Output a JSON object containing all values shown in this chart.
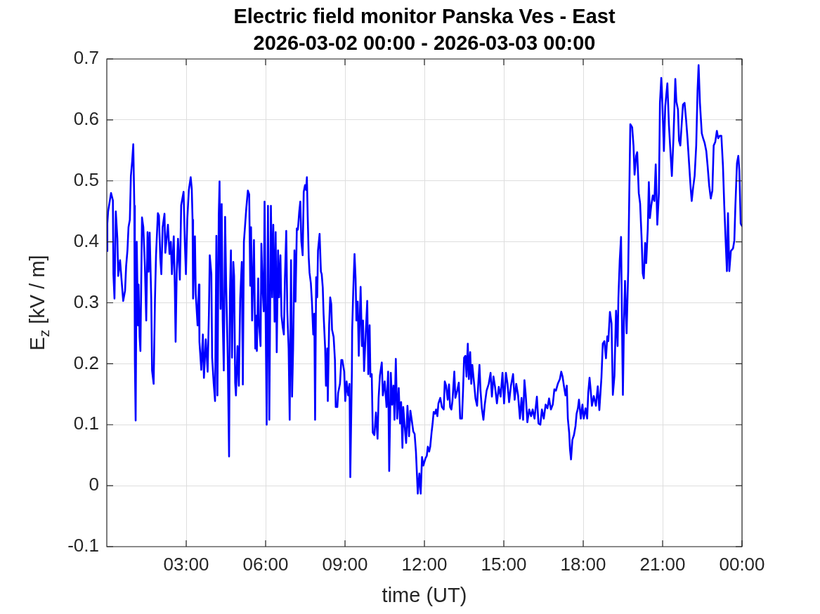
{
  "chart_data": {
    "type": "line",
    "title": "Electric field monitor Panska Ves - East",
    "subtitle": "2026-03-02 00:00 - 2026-03-03 00:00",
    "xlabel": "time (UT)",
    "ylabel": "E$_{z}$ [kV / m]",
    "x": [
      0,
      0.02,
      0.05,
      0.16,
      0.23,
      0.25,
      0.29,
      0.34,
      0.4,
      0.43,
      0.5,
      0.56,
      0.62,
      0.69,
      0.73,
      0.78,
      0.82,
      0.87,
      0.91,
      0.96,
      1,
      1.04,
      1.06,
      1.09,
      1.13,
      1.18,
      1.2,
      1.24,
      1.27,
      1.33,
      1.38,
      1.44,
      1.49,
      1.54,
      1.58,
      1.62,
      1.68,
      1.71,
      1.77,
      1.82,
      1.86,
      1.93,
      1.97,
      2.02,
      2.06,
      2.11,
      2.18,
      2.21,
      2.31,
      2.37,
      2.42,
      2.46,
      2.53,
      2.57,
      2.6,
      2.64,
      2.69,
      2.76,
      2.81,
      2.9,
      2.95,
      2.99,
      3.04,
      3.1,
      3.17,
      3.21,
      3.24,
      3.26,
      3.33,
      3.36,
      3.43,
      3.48,
      3.5,
      3.57,
      3.63,
      3.67,
      3.74,
      3.81,
      3.86,
      3.89,
      3.95,
      3.98,
      4.04,
      4.09,
      4.14,
      4.18,
      4.23,
      4.26,
      4.3,
      4.34,
      4.38,
      4.42,
      4.47,
      4.51,
      4.57,
      4.62,
      4.65,
      4.69,
      4.73,
      4.78,
      4.81,
      4.85,
      4.88,
      4.94,
      4.99,
      5.04,
      5.1,
      5.14,
      5.18,
      5.22,
      5.27,
      5.33,
      5.38,
      5.42,
      5.45,
      5.49,
      5.56,
      5.61,
      5.65,
      5.67,
      5.72,
      5.75,
      5.81,
      5.84,
      5.89,
      5.93,
      5.96,
      6.04,
      6.09,
      6.14,
      6.2,
      6.25,
      6.29,
      6.34,
      6.38,
      6.42,
      6.47,
      6.51,
      6.56,
      6.6,
      6.65,
      6.69,
      6.73,
      6.78,
      6.82,
      6.87,
      6.91,
      6.96,
      7,
      7.04,
      7.09,
      7.13,
      7.18,
      7.22,
      7.27,
      7.31,
      7.35,
      7.4,
      7.44,
      7.49,
      7.53,
      7.56,
      7.59,
      7.63,
      7.66,
      7.71,
      7.75,
      7.8,
      7.84,
      7.87,
      7.91,
      7.95,
      7.98,
      8.04,
      8.09,
      8.12,
      8.16,
      8.19,
      8.25,
      8.28,
      8.33,
      8.35,
      8.4,
      8.44,
      8.48,
      8.51,
      8.57,
      8.62,
      8.65,
      8.71,
      8.74,
      8.81,
      8.86,
      8.9,
      8.97,
      9.01,
      9.06,
      9.12,
      9.17,
      9.2,
      9.26,
      9.27,
      9.31,
      9.36,
      9.4,
      9.43,
      9.48,
      9.52,
      9.59,
      9.64,
      9.68,
      9.72,
      9.79,
      9.84,
      9.88,
      9.93,
      9.96,
      10.01,
      10.05,
      10.11,
      10.17,
      10.23,
      10.27,
      10.32,
      10.39,
      10.43,
      10.5,
      10.57,
      10.63,
      10.67,
      10.73,
      10.78,
      10.83,
      10.87,
      10.92,
      10.97,
      11.03,
      11.08,
      11.12,
      11.17,
      11.2,
      11.26,
      11.31,
      11.36,
      11.42,
      11.47,
      11.52,
      11.58,
      11.63,
      11.68,
      11.75,
      11.81,
      11.86,
      11.91,
      11.96,
      12.04,
      12.09,
      12.13,
      12.18,
      12.22,
      12.27,
      12.31,
      12.35,
      12.4,
      12.44,
      12.49,
      12.53,
      12.6,
      12.66,
      12.73,
      12.77,
      12.82,
      12.88,
      12.93,
      12.97,
      13.02,
      13.06,
      13.13,
      13.17,
      13.24,
      13.3,
      13.35,
      13.42,
      13.46,
      13.5,
      13.55,
      13.59,
      13.64,
      13.68,
      13.73,
      13.77,
      13.81,
      13.88,
      13.93,
      13.99,
      14.04,
      14.08,
      14.12,
      14.17,
      14.23,
      14.28,
      14.35,
      14.43,
      14.5,
      14.55,
      14.61,
      14.67,
      14.74,
      14.81,
      14.88,
      14.95,
      15.01,
      15.08,
      15.14,
      15.2,
      15.27,
      15.35,
      15.41,
      15.47,
      15.54,
      15.61,
      15.67,
      15.73,
      15.78,
      15.83,
      15.89,
      15.96,
      16.03,
      16.09,
      16.16,
      16.25,
      16.31,
      16.38,
      16.44,
      16.51,
      16.58,
      16.65,
      16.71,
      16.78,
      16.85,
      16.91,
      16.97,
      17.04,
      17.12,
      17.17,
      17.22,
      17.27,
      17.33,
      17.38,
      17.42,
      17.47,
      17.5,
      17.54,
      17.59,
      17.65,
      17.71,
      17.75,
      17.8,
      17.84,
      17.91,
      17.97,
      18.02,
      18.09,
      18.15,
      18.19,
      18.24,
      18.27,
      18.33,
      18.4,
      18.48,
      18.55,
      18.61,
      18.69,
      18.74,
      18.8,
      18.86,
      18.91,
      18.95,
      19.01,
      19.07,
      19.12,
      19.18,
      19.24,
      19.3,
      19.33,
      19.38,
      19.43,
      19.47,
      19.5,
      19.54,
      19.58,
      19.64,
      19.7,
      19.74,
      19.78,
      19.85,
      19.9,
      19.94,
      20,
      20.04,
      20.1,
      20.15,
      20.21,
      20.25,
      20.29,
      20.34,
      20.38,
      20.44,
      20.48,
      20.52,
      20.57,
      20.63,
      20.69,
      20.74,
      20.8,
      20.86,
      20.9,
      20.95,
      20.99,
      21.05,
      21.1,
      21.18,
      21.24,
      21.3,
      21.35,
      21.41,
      21.48,
      21.52,
      21.58,
      21.62,
      21.67,
      21.71,
      21.77,
      21.83,
      21.89,
      21.94,
      22,
      22.06,
      22.1,
      22.15,
      22.21,
      22.27,
      22.32,
      22.36,
      22.41,
      22.48,
      22.53,
      22.59,
      22.65,
      22.7,
      22.76,
      22.82,
      22.88,
      22.93,
      22.99,
      23.05,
      23.1,
      23.16,
      23.22,
      23.28,
      23.33,
      23.39,
      23.43,
      23.47,
      23.52,
      23.58,
      23.66,
      23.71,
      23.75,
      23.81,
      23.86,
      23.9,
      23.95,
      24
    ],
    "series": [
      {
        "color": "#0000ff",
        "values": [
          0.385,
          0.43,
          0.45,
          0.48,
          0.468,
          0.347,
          0.307,
          0.45,
          0.405,
          0.344,
          0.37,
          0.336,
          0.303,
          0.32,
          0.36,
          0.386,
          0.424,
          0.436,
          0.508,
          0.533,
          0.56,
          0.459,
          0.206,
          0.107,
          0.4,
          0.263,
          0.33,
          0.244,
          0.221,
          0.44,
          0.424,
          0.359,
          0.271,
          0.416,
          0.351,
          0.415,
          0.305,
          0.189,
          0.167,
          0.305,
          0.378,
          0.447,
          0.443,
          0.374,
          0.347,
          0.424,
          0.446,
          0.382,
          0.428,
          0.38,
          0.4,
          0.347,
          0.409,
          0.325,
          0.236,
          0.347,
          0.405,
          0.338,
          0.46,
          0.482,
          0.397,
          0.347,
          0.436,
          0.485,
          0.506,
          0.487,
          0.436,
          0.307,
          0.409,
          0.315,
          0.263,
          0.33,
          0.236,
          0.19,
          0.248,
          0.177,
          0.24,
          0.187,
          0.286,
          0.378,
          0.347,
          0.21,
          0.167,
          0.139,
          0.41,
          0.148,
          0.443,
          0.499,
          0.29,
          0.462,
          0.271,
          0.189,
          0.441,
          0.328,
          0.21,
          0.048,
          0.309,
          0.386,
          0.21,
          0.367,
          0.344,
          0.169,
          0.148,
          0.229,
          0.164,
          0.307,
          0.367,
          0.166,
          0.4,
          0.424,
          0.455,
          0.484,
          0.478,
          0.328,
          0.424,
          0.271,
          0.403,
          0.225,
          0.279,
          0.221,
          0.34,
          0.267,
          0.229,
          0.397,
          0.32,
          0.286,
          0.466,
          0.1,
          0.459,
          0.108,
          0.459,
          0.309,
          0.428,
          0.269,
          0.416,
          0.219,
          0.386,
          0.309,
          0.378,
          0.279,
          0.259,
          0.248,
          0.34,
          0.418,
          0.286,
          0.225,
          0.108,
          0.37,
          0.146,
          0.225,
          0.386,
          0.302,
          0.422,
          0.42,
          0.449,
          0.466,
          0.401,
          0.378,
          0.482,
          0.493,
          0.485,
          0.506,
          0.443,
          0.374,
          0.349,
          0.332,
          0.302,
          0.248,
          0.282,
          0.108,
          0.342,
          0.309,
          0.386,
          0.413,
          0.351,
          0.347,
          0.325,
          0.282,
          0.225,
          0.164,
          0.225,
          0.139,
          0.263,
          0.309,
          0.298,
          0.256,
          0.244,
          0.206,
          0.129,
          0.129,
          0.152,
          0.167,
          0.206,
          0.206,
          0.187,
          0.139,
          0.171,
          0.148,
          0.167,
          0.014,
          0.187,
          0.254,
          0.317,
          0.38,
          0.34,
          0.271,
          0.302,
          0.213,
          0.326,
          0.229,
          0.271,
          0.188,
          0.256,
          0.303,
          0.183,
          0.263,
          0.179,
          0.183,
          0.087,
          0.083,
          0.12,
          0.077,
          0.144,
          0.181,
          0.202,
          0.148,
          0.171,
          0.129,
          0.187,
          0.024,
          0.185,
          0.133,
          0.164,
          0.108,
          0.208,
          0.11,
          0.16,
          0.102,
          0.137,
          0.062,
          0.129,
          0.095,
          0.07,
          0.131,
          0.081,
          0.123,
          0.108,
          0.089,
          0.085,
          0.056,
          -0.013,
          0.02,
          -0.013,
          0.047,
          0.033,
          0.045,
          0.049,
          0.064,
          0.056,
          0.064,
          0.087,
          0.102,
          0.121,
          0.118,
          0.125,
          0.114,
          0.135,
          0.144,
          0.129,
          0.125,
          0.171,
          0.164,
          0.141,
          0.166,
          0.129,
          0.125,
          0.139,
          0.187,
          0.144,
          0.156,
          0.169,
          0.11,
          0.11,
          0.156,
          0.21,
          0.213,
          0.179,
          0.233,
          0.175,
          0.219,
          0.167,
          0.198,
          0.167,
          0.143,
          0.131,
          0.171,
          0.198,
          0.156,
          0.127,
          0.108,
          0.133,
          0.156,
          0.167,
          0.185,
          0.146,
          0.179,
          0.162,
          0.135,
          0.162,
          0.146,
          0.185,
          0.135,
          0.185,
          0.167,
          0.137,
          0.164,
          0.183,
          0.141,
          0.167,
          0.148,
          0.11,
          0.144,
          0.108,
          0.173,
          0.148,
          0.104,
          0.125,
          0.114,
          0.125,
          0.11,
          0.146,
          0.102,
          0.1,
          0.125,
          0.11,
          0.133,
          0.127,
          0.143,
          0.125,
          0.133,
          0.158,
          0.156,
          0.167,
          0.175,
          0.187,
          0.179,
          0.164,
          0.148,
          0.164,
          0.11,
          0.087,
          0.06,
          0.043,
          0.075,
          0.083,
          0.098,
          0.118,
          0.127,
          0.141,
          0.11,
          0.133,
          0.11,
          0.127,
          0.11,
          0.152,
          0.177,
          0.163,
          0.131,
          0.147,
          0.131,
          0.163,
          0.124,
          0.178,
          0.233,
          0.237,
          0.209,
          0.245,
          0.237,
          0.285,
          0.266,
          0.149,
          0.18,
          0.287,
          0.229,
          0.307,
          0.369,
          0.408,
          0.25,
          0.149,
          0.27,
          0.336,
          0.25,
          0.352,
          0.476,
          0.593,
          0.588,
          0.558,
          0.51,
          0.541,
          0.547,
          0.48,
          0.463,
          0.402,
          0.348,
          0.34,
          0.398,
          0.365,
          0.422,
          0.498,
          0.439,
          0.459,
          0.476,
          0.467,
          0.527,
          0.428,
          0.48,
          0.628,
          0.669,
          0.628,
          0.549,
          0.623,
          0.66,
          0.591,
          0.545,
          0.508,
          0.57,
          0.667,
          0.63,
          0.617,
          0.566,
          0.558,
          0.586,
          0.625,
          0.628,
          0.599,
          0.57,
          0.529,
          0.488,
          0.467,
          0.488,
          0.508,
          0.558,
          0.648,
          0.69,
          0.628,
          0.578,
          0.57,
          0.562,
          0.549,
          0.525,
          0.492,
          0.471,
          0.484,
          0.558,
          0.564,
          0.582,
          0.57,
          0.574,
          0.574,
          0.525,
          0.459,
          0.393,
          0.352,
          0.447,
          0.352,
          0.385,
          0.389,
          0.402,
          0.459,
          0.529,
          0.541,
          0.517,
          0.43,
          0.426
        ]
      }
    ],
    "xlim": [
      0,
      24
    ],
    "xticks": [
      {
        "value": 3,
        "label": "03:00"
      },
      {
        "value": 6,
        "label": "06:00"
      },
      {
        "value": 9,
        "label": "09:00"
      },
      {
        "value": 12,
        "label": "12:00"
      },
      {
        "value": 15,
        "label": "15:00"
      },
      {
        "value": 18,
        "label": "18:00"
      },
      {
        "value": 21,
        "label": "21:00"
      },
      {
        "value": 24,
        "label": "00:00"
      }
    ],
    "ylim": [
      -0.1,
      0.7
    ],
    "yticks": [
      -0.1,
      0,
      0.1,
      0.2,
      0.3,
      0.4,
      0.5,
      0.6,
      0.7
    ],
    "grid": true
  }
}
